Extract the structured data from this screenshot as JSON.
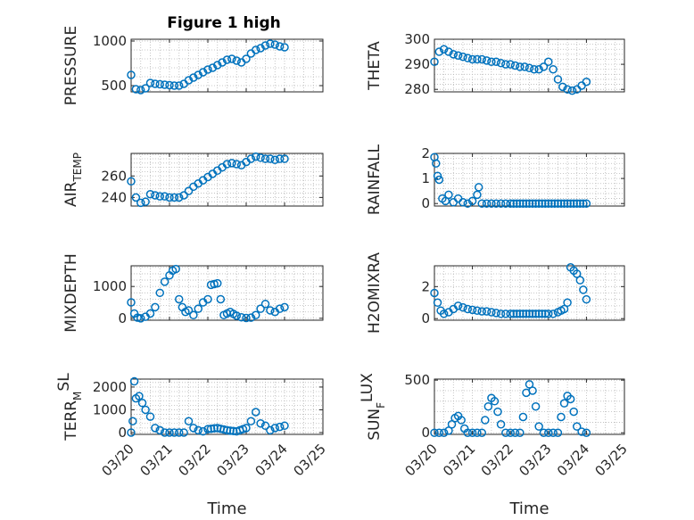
{
  "figure_title": "Figure 1 high",
  "colors": {
    "marker": "#0072BD",
    "axis": "#262626",
    "grid": "#b8b8b8"
  },
  "chart_data": [
    {
      "type": "scatter",
      "title": "Figure 1 high",
      "xlabel": "",
      "ylabel": "PRESSURE",
      "ylabel_sub": "",
      "ylim": [
        430,
        1020
      ],
      "yticks": [
        500,
        1000
      ],
      "xlim": [
        "03/20",
        "03/25"
      ],
      "x": [
        "03/20 00:00",
        "03/20 03:00",
        "03/20 06:00",
        "03/20 09:00",
        "03/20 12:00",
        "03/20 15:00",
        "03/20 18:00",
        "03/20 21:00",
        "03/21 00:00",
        "03/21 03:00",
        "03/21 06:00",
        "03/21 09:00",
        "03/21 12:00",
        "03/21 15:00",
        "03/21 18:00",
        "03/21 21:00",
        "03/22 00:00",
        "03/22 03:00",
        "03/22 06:00",
        "03/22 09:00",
        "03/22 12:00",
        "03/22 15:00",
        "03/22 18:00",
        "03/22 21:00",
        "03/23 00:00",
        "03/23 03:00",
        "03/23 06:00",
        "03/23 09:00",
        "03/23 12:00",
        "03/23 15:00",
        "03/23 18:00",
        "03/23 21:00",
        "03/24 00:00"
      ],
      "y": [
        620,
        460,
        450,
        470,
        530,
        520,
        515,
        510,
        505,
        500,
        500,
        520,
        560,
        590,
        620,
        650,
        680,
        700,
        730,
        760,
        790,
        800,
        780,
        760,
        800,
        860,
        900,
        920,
        950,
        970,
        960,
        940,
        930
      ]
    },
    {
      "type": "scatter",
      "title": "",
      "xlabel": "",
      "ylabel": "THETA",
      "ylabel_sub": "",
      "ylim": [
        279,
        300
      ],
      "yticks": [
        280,
        290,
        300
      ],
      "xlim": [
        "03/20",
        "03/25"
      ],
      "x": [
        "03/20 00:00",
        "03/20 03:00",
        "03/20 06:00",
        "03/20 09:00",
        "03/20 12:00",
        "03/20 15:00",
        "03/20 18:00",
        "03/20 21:00",
        "03/21 00:00",
        "03/21 03:00",
        "03/21 06:00",
        "03/21 09:00",
        "03/21 12:00",
        "03/21 15:00",
        "03/21 18:00",
        "03/21 21:00",
        "03/22 00:00",
        "03/22 03:00",
        "03/22 06:00",
        "03/22 09:00",
        "03/22 12:00",
        "03/22 15:00",
        "03/22 18:00",
        "03/22 21:00",
        "03/23 00:00",
        "03/23 03:00",
        "03/23 06:00",
        "03/23 09:00",
        "03/23 12:00",
        "03/23 15:00",
        "03/23 18:00",
        "03/23 21:00",
        "03/24 00:00"
      ],
      "y": [
        291,
        295,
        296,
        295,
        294,
        293.5,
        293,
        292.5,
        292,
        292,
        292,
        291.5,
        291,
        291,
        290.5,
        290,
        290,
        289.5,
        289,
        289,
        288.5,
        288,
        288,
        289,
        291,
        288,
        284,
        281,
        280,
        279.5,
        280,
        281.5,
        283
      ]
    },
    {
      "type": "scatter",
      "title": "",
      "xlabel": "",
      "ylabel": "AIR",
      "ylabel_sub": "TEMP",
      "ylim": [
        232,
        281
      ],
      "yticks": [
        240,
        260
      ],
      "xlim": [
        "03/20",
        "03/25"
      ],
      "x": [
        "03/20 00:00",
        "03/20 03:00",
        "03/20 06:00",
        "03/20 09:00",
        "03/20 12:00",
        "03/20 15:00",
        "03/20 18:00",
        "03/20 21:00",
        "03/21 00:00",
        "03/21 03:00",
        "03/21 06:00",
        "03/21 09:00",
        "03/21 12:00",
        "03/21 15:00",
        "03/21 18:00",
        "03/21 21:00",
        "03/22 00:00",
        "03/22 03:00",
        "03/22 06:00",
        "03/22 09:00",
        "03/22 12:00",
        "03/22 15:00",
        "03/22 18:00",
        "03/22 21:00",
        "03/23 00:00",
        "03/23 03:00",
        "03/23 06:00",
        "03/23 09:00",
        "03/23 12:00",
        "03/23 15:00",
        "03/23 18:00",
        "03/23 21:00",
        "03/24 00:00"
      ],
      "y": [
        255,
        240,
        235,
        236,
        243,
        242,
        241,
        241,
        240,
        240,
        240,
        242,
        246,
        250,
        253,
        256,
        259,
        262,
        265,
        268,
        271,
        272,
        271,
        270,
        273,
        276,
        278,
        277,
        276,
        276,
        275,
        276,
        276
      ]
    },
    {
      "type": "scatter",
      "title": "",
      "xlabel": "",
      "ylabel": "RAINFALL",
      "ylabel_sub": "",
      "ylim": [
        -0.1,
        2
      ],
      "yticks": [
        0,
        1,
        2
      ],
      "xlim": [
        "03/20",
        "03/25"
      ],
      "x": [
        "03/20 00:00",
        "03/20 01:00",
        "03/20 02:00",
        "03/20 03:00",
        "03/20 05:00",
        "03/20 07:00",
        "03/20 09:00",
        "03/20 12:00",
        "03/20 15:00",
        "03/20 18:00",
        "03/20 21:00",
        "03/21 00:00",
        "03/21 03:00",
        "03/21 04:00",
        "03/21 06:00",
        "03/21 09:00",
        "03/21 12:00",
        "03/21 15:00",
        "03/21 18:00",
        "03/21 21:00",
        "03/22 00:00",
        "03/22 06:00",
        "03/22 12:00",
        "03/22 18:00",
        "03/23 00:00",
        "03/23 06:00",
        "03/23 12:00",
        "03/23 18:00",
        "03/24 00:00"
      ],
      "y": [
        1.85,
        1.6,
        1.1,
        0.95,
        0.2,
        0.1,
        0.35,
        0.05,
        0.2,
        0.05,
        0,
        0.1,
        0.35,
        0.65,
        0,
        0,
        0,
        0,
        0,
        0,
        0,
        0,
        0,
        0,
        0,
        0,
        0,
        0,
        0
      ]
    },
    {
      "type": "scatter",
      "title": "",
      "xlabel": "",
      "ylabel": "MIXDEPTH",
      "ylabel_sub": "",
      "ylim": [
        -60,
        1650
      ],
      "yticks": [
        0,
        1000
      ],
      "xlim": [
        "03/20",
        "03/25"
      ],
      "x": [
        "03/20 00:00",
        "03/20 02:00",
        "03/20 04:00",
        "03/20 06:00",
        "03/20 09:00",
        "03/20 12:00",
        "03/20 15:00",
        "03/20 18:00",
        "03/20 21:00",
        "03/21 00:00",
        "03/21 02:00",
        "03/21 04:00",
        "03/21 06:00",
        "03/21 08:00",
        "03/21 10:00",
        "03/21 12:00",
        "03/21 15:00",
        "03/21 18:00",
        "03/21 21:00",
        "03/22 00:00",
        "03/22 02:00",
        "03/22 06:00",
        "03/22 10:00",
        "03/22 14:00",
        "03/22 18:00",
        "03/22 21:00",
        "03/23 00:00",
        "03/23 03:00",
        "03/23 06:00",
        "03/23 09:00",
        "03/23 12:00",
        "03/23 15:00",
        "03/23 18:00",
        "03/23 21:00",
        "03/24 00:00"
      ],
      "y": [
        500,
        150,
        20,
        0,
        50,
        150,
        350,
        800,
        1150,
        1350,
        1500,
        1550,
        600,
        350,
        200,
        250,
        100,
        300,
        500,
        600,
        1050,
        1100,
        100,
        200,
        80,
        30,
        10,
        20,
        100,
        300,
        450,
        250,
        200,
        300,
        350
      ]
    },
    {
      "type": "scatter",
      "title": "",
      "xlabel": "",
      "ylabel": "H2OMIXRA",
      "ylabel_sub": "",
      "ylim": [
        -0.1,
        3.3
      ],
      "yticks": [
        0,
        2
      ],
      "xlim": [
        "03/20",
        "03/25"
      ],
      "x": [
        "03/20 00:00",
        "03/20 02:00",
        "03/20 04:00",
        "03/20 06:00",
        "03/20 09:00",
        "03/20 12:00",
        "03/20 15:00",
        "03/20 18:00",
        "03/20 21:00",
        "03/21 00:00",
        "03/21 03:00",
        "03/21 06:00",
        "03/21 09:00",
        "03/21 12:00",
        "03/21 15:00",
        "03/21 18:00",
        "03/21 21:00",
        "03/22 00:00",
        "03/22 06:00",
        "03/22 12:00",
        "03/22 18:00",
        "03/23 00:00",
        "03/23 03:00",
        "03/23 06:00",
        "03/23 08:00",
        "03/23 10:00",
        "03/23 12:00",
        "03/23 14:00",
        "03/23 16:00",
        "03/23 18:00",
        "03/23 20:00",
        "03/23 22:00",
        "03/24 00:00"
      ],
      "y": [
        1.6,
        1.0,
        0.5,
        0.3,
        0.4,
        0.6,
        0.8,
        0.7,
        0.6,
        0.55,
        0.5,
        0.45,
        0.45,
        0.4,
        0.35,
        0.3,
        0.3,
        0.3,
        0.3,
        0.3,
        0.3,
        0.3,
        0.3,
        0.4,
        0.5,
        0.6,
        1.0,
        3.2,
        3.0,
        2.8,
        2.4,
        1.8,
        1.2
      ]
    },
    {
      "type": "scatter",
      "title": "",
      "xlabel": "Time",
      "ylabel": "TERR",
      "ylabel_sub": "M",
      "ylabel_sup": "SL",
      "ylim": [
        -80,
        2350
      ],
      "yticks": [
        0,
        1000,
        2000
      ],
      "xlim": [
        "03/20",
        "03/25"
      ],
      "xticks": [
        "03/20",
        "03/21",
        "03/22",
        "03/23",
        "03/24",
        "03/25"
      ],
      "x": [
        "03/20 00:00",
        "03/20 01:00",
        "03/20 02:00",
        "03/20 03:00",
        "03/20 05:00",
        "03/20 07:00",
        "03/20 09:00",
        "03/20 12:00",
        "03/20 15:00",
        "03/20 18:00",
        "03/20 21:00",
        "03/21 00:00",
        "03/21 03:00",
        "03/21 06:00",
        "03/21 09:00",
        "03/21 12:00",
        "03/21 15:00",
        "03/21 18:00",
        "03/21 21:00",
        "03/22 00:00",
        "03/22 06:00",
        "03/22 12:00",
        "03/22 18:00",
        "03/23 00:00",
        "03/23 03:00",
        "03/23 06:00",
        "03/23 09:00",
        "03/23 12:00",
        "03/23 15:00",
        "03/23 18:00",
        "03/23 21:00",
        "03/24 00:00"
      ],
      "y": [
        0,
        500,
        2250,
        1500,
        1600,
        1300,
        1000,
        700,
        200,
        100,
        0,
        0,
        0,
        0,
        0,
        500,
        200,
        100,
        50,
        150,
        200,
        100,
        50,
        200,
        500,
        900,
        400,
        300,
        100,
        200,
        250,
        300
      ]
    },
    {
      "type": "scatter",
      "title": "",
      "xlabel": "Time",
      "ylabel": "SUN",
      "ylabel_sub": "F",
      "ylabel_sup": "LUX",
      "ylim": [
        -15,
        510
      ],
      "yticks": [
        0,
        500
      ],
      "xlim": [
        "03/20",
        "03/25"
      ],
      "xticks": [
        "03/20",
        "03/21",
        "03/22",
        "03/23",
        "03/24",
        "03/25"
      ],
      "x": [
        "03/20 00:00",
        "03/20 03:00",
        "03/20 06:00",
        "03/20 09:00",
        "03/20 11:00",
        "03/20 13:00",
        "03/20 15:00",
        "03/20 17:00",
        "03/20 19:00",
        "03/20 21:00",
        "03/21 00:00",
        "03/21 03:00",
        "03/21 06:00",
        "03/21 08:00",
        "03/21 10:00",
        "03/21 12:00",
        "03/21 14:00",
        "03/21 16:00",
        "03/21 18:00",
        "03/21 21:00",
        "03/22 00:00",
        "03/22 03:00",
        "03/22 06:00",
        "03/22 08:00",
        "03/22 10:00",
        "03/22 12:00",
        "03/22 14:00",
        "03/22 16:00",
        "03/22 18:00",
        "03/22 21:00",
        "03/23 00:00",
        "03/23 03:00",
        "03/23 06:00",
        "03/23 08:00",
        "03/23 10:00",
        "03/23 12:00",
        "03/23 14:00",
        "03/23 16:00",
        "03/23 18:00",
        "03/23 21:00",
        "03/24 00:00"
      ],
      "y": [
        0,
        0,
        0,
        20,
        80,
        140,
        160,
        120,
        40,
        0,
        0,
        0,
        0,
        120,
        250,
        330,
        300,
        200,
        80,
        0,
        0,
        0,
        0,
        150,
        380,
        460,
        400,
        250,
        60,
        0,
        0,
        0,
        0,
        150,
        280,
        350,
        320,
        200,
        60,
        10,
        0
      ]
    }
  ]
}
